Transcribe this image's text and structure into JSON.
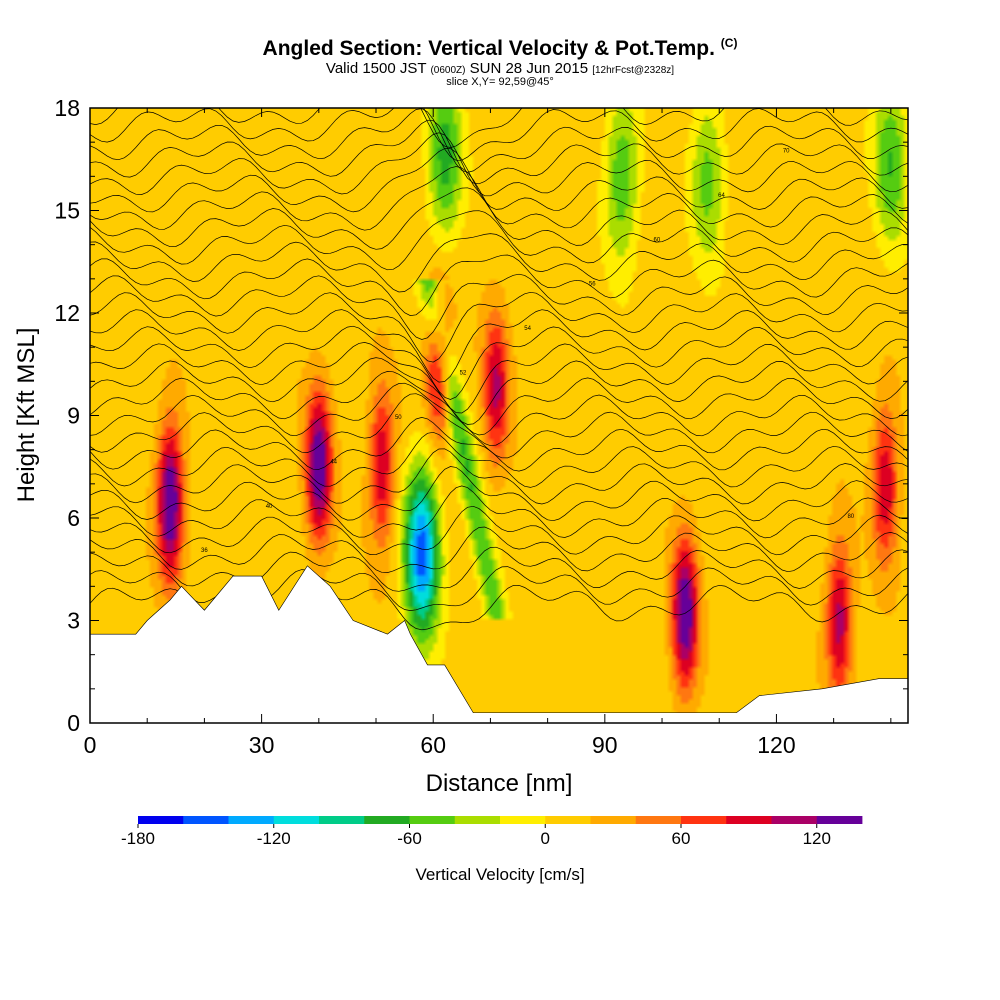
{
  "header": {
    "title": "Angled Section: Vertical Velocity & Pot.Temp.",
    "title_unit": "(C)",
    "valid_prefix": "Valid 1500 JST",
    "valid_utc": "(0600Z)",
    "valid_date": "SUN 28 Jun 2015",
    "forecast": "[12hrFcst@2328z]",
    "slice": "slice X,Y= 92,59@45°"
  },
  "chart_data": {
    "type": "heatmap",
    "title": "Angled Section: Vertical Velocity & Pot.Temp.",
    "xlabel": "Distance [nm]",
    "ylabel": "Height [Kft MSL]",
    "xlim": [
      0,
      143
    ],
    "ylim": [
      0,
      18
    ],
    "x_ticks": [
      0,
      30,
      60,
      90,
      120
    ],
    "y_ticks": [
      0,
      3,
      6,
      9,
      12,
      15,
      18
    ],
    "colorbar": {
      "label": "Vertical Velocity [cm/s]",
      "ticks": [
        -180,
        -120,
        -60,
        0,
        60,
        120
      ],
      "range": [
        -180,
        140
      ],
      "step": 20,
      "colors": [
        "#0000ee",
        "#0055ff",
        "#00aaff",
        "#00dddd",
        "#00cc88",
        "#22aa22",
        "#55cc11",
        "#aadd00",
        "#ffee00",
        "#ffcc00",
        "#ffaa00",
        "#ff7711",
        "#ff3311",
        "#dd0022",
        "#aa0066",
        "#660099"
      ]
    },
    "terrain": [
      [
        0,
        2.6
      ],
      [
        8,
        2.6
      ],
      [
        10,
        3.0
      ],
      [
        14,
        3.6
      ],
      [
        16,
        4.0
      ],
      [
        20,
        3.3
      ],
      [
        25,
        4.3
      ],
      [
        30,
        4.3
      ],
      [
        33,
        3.3
      ],
      [
        38,
        4.6
      ],
      [
        42,
        4.0
      ],
      [
        46,
        3.0
      ],
      [
        52,
        2.6
      ],
      [
        55,
        3.0
      ],
      [
        56,
        2.6
      ],
      [
        59,
        1.7
      ],
      [
        62,
        1.7
      ],
      [
        67,
        0.3
      ],
      [
        102,
        0.3
      ],
      [
        113,
        0.3
      ],
      [
        117,
        0.8
      ],
      [
        128,
        1.0
      ],
      [
        138,
        1.3
      ],
      [
        143,
        1.3
      ]
    ],
    "updrafts": [
      {
        "x": 14,
        "z": 6.5,
        "max": 140
      },
      {
        "x": 40,
        "z": 7.5,
        "max": 130
      },
      {
        "x": 51,
        "z": 7.5,
        "max": 90
      },
      {
        "x": 61,
        "z": 10.5,
        "max": 100
      },
      {
        "x": 71,
        "z": 9.8,
        "max": 90
      },
      {
        "x": 104,
        "z": 3.2,
        "max": 130
      },
      {
        "x": 131,
        "z": 3.0,
        "max": 100
      },
      {
        "x": 139,
        "z": 7.0,
        "max": 90
      }
    ],
    "downdrafts": [
      {
        "x": 58,
        "z": 5.0,
        "min": -160
      },
      {
        "x": 62,
        "z": 16.5,
        "min": -80
      },
      {
        "x": 93,
        "z": 16.0,
        "min": -70
      },
      {
        "x": 108,
        "z": 16.0,
        "min": -60
      },
      {
        "x": 140,
        "z": 16.5,
        "min": -70
      }
    ],
    "theta_labels": [
      "36",
      "40",
      "44",
      "50",
      "52",
      "54",
      "56",
      "60",
      "64",
      "70",
      "80"
    ]
  }
}
